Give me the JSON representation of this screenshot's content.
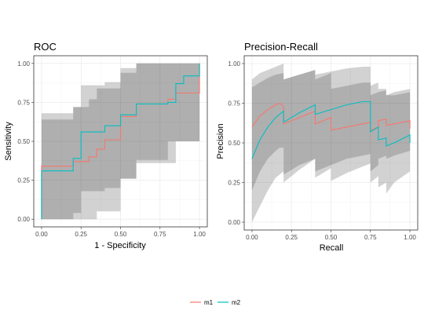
{
  "chart_data": [
    {
      "type": "line",
      "title": "ROC",
      "xlabel": "1 - Specificity",
      "ylabel": "Sensitivity",
      "xlim": [
        0,
        1
      ],
      "ylim": [
        0,
        1
      ],
      "x_ticks": [
        "0.00",
        "0.25",
        "0.50",
        "0.75",
        "1.00"
      ],
      "y_ticks": [
        "0.00",
        "0.25",
        "0.50",
        "0.75",
        "1.00"
      ],
      "grid": true,
      "series": [
        {
          "name": "m1",
          "color": "#f8766d",
          "x": [
            0,
            0,
            0.2,
            0.2,
            0.3,
            0.3,
            0.35,
            0.35,
            0.4,
            0.4,
            0.5,
            0.5,
            0.6,
            0.6,
            0.8,
            0.8,
            0.85,
            0.85,
            1.0,
            1.0
          ],
          "y": [
            0,
            0.34,
            0.34,
            0.37,
            0.37,
            0.4,
            0.4,
            0.45,
            0.45,
            0.51,
            0.51,
            0.66,
            0.66,
            0.74,
            0.74,
            0.77,
            0.77,
            0.81,
            0.81,
            1.0
          ],
          "band_lower": [
            0,
            0,
            0,
            0,
            0,
            0,
            0,
            0.05,
            0.05,
            0.05,
            0.05,
            0.26,
            0.26,
            0.38,
            0.38,
            0.5,
            0.5,
            0.5,
            0.5,
            0.5
          ],
          "band_upper": [
            0.68,
            0.68,
            0.68,
            0.72,
            0.72,
            0.77,
            0.77,
            0.84,
            0.84,
            0.84,
            0.84,
            0.97,
            0.97,
            1.0,
            1.0,
            1.0,
            1.0,
            1.0,
            1.0,
            1.0
          ]
        },
        {
          "name": "m2",
          "color": "#00bfc4",
          "x": [
            0,
            0,
            0.2,
            0.2,
            0.25,
            0.25,
            0.4,
            0.4,
            0.5,
            0.5,
            0.6,
            0.6,
            0.8,
            0.8,
            0.85,
            0.85,
            0.9,
            0.9,
            1.0,
            1.0
          ],
          "y": [
            0,
            0.31,
            0.31,
            0.39,
            0.39,
            0.56,
            0.56,
            0.6,
            0.6,
            0.67,
            0.67,
            0.74,
            0.74,
            0.75,
            0.75,
            0.87,
            0.87,
            0.92,
            0.92,
            1.0
          ],
          "band_lower": [
            0,
            0,
            0,
            0.04,
            0.04,
            0.18,
            0.18,
            0.2,
            0.2,
            0.26,
            0.26,
            0.36,
            0.36,
            0.36,
            0.36,
            0.5,
            0.5,
            0.5,
            0.5,
            0.5
          ],
          "band_upper": [
            0.64,
            0.64,
            0.64,
            0.72,
            0.72,
            0.86,
            0.86,
            0.88,
            0.88,
            0.94,
            0.94,
            1.0,
            1.0,
            1.0,
            1.0,
            1.0,
            1.0,
            1.0,
            1.0,
            1.0
          ]
        }
      ]
    },
    {
      "type": "line",
      "title": "Precision-Recall",
      "xlabel": "Recall",
      "ylabel": "Precision",
      "xlim": [
        0,
        1
      ],
      "ylim": [
        0,
        1
      ],
      "x_ticks": [
        "0.00",
        "0.25",
        "0.50",
        "0.75",
        "1.00"
      ],
      "y_ticks": [
        "0.00",
        "0.25",
        "0.50",
        "0.75",
        "1.00"
      ],
      "grid": true,
      "series": [
        {
          "name": "m1",
          "color": "#f8766d",
          "x": [
            0,
            0.05,
            0.1,
            0.15,
            0.175,
            0.2,
            0.2,
            0.3,
            0.4,
            0.4,
            0.45,
            0.5,
            0.5,
            0.6,
            0.7,
            0.75,
            0.75,
            0.8,
            0.8,
            0.85,
            0.85,
            0.9,
            1.0,
            1.0
          ],
          "y": [
            0.6,
            0.67,
            0.71,
            0.74,
            0.75,
            0.73,
            0.62,
            0.66,
            0.7,
            0.62,
            0.64,
            0.66,
            0.58,
            0.6,
            0.62,
            0.63,
            0.58,
            0.6,
            0.64,
            0.65,
            0.61,
            0.62,
            0.64,
            0.59
          ],
          "band_lower": [
            0.2,
            0.32,
            0.4,
            0.45,
            0.47,
            0.47,
            0.3,
            0.36,
            0.4,
            0.28,
            0.31,
            0.34,
            0.26,
            0.31,
            0.35,
            0.37,
            0.32,
            0.36,
            0.4,
            0.42,
            0.4,
            0.42,
            0.45,
            0.45
          ],
          "band_upper": [
            0.9,
            0.94,
            0.96,
            0.98,
            0.99,
            1.0,
            0.9,
            0.93,
            0.96,
            0.9,
            0.92,
            0.94,
            0.84,
            0.86,
            0.88,
            0.88,
            0.8,
            0.82,
            0.84,
            0.84,
            0.8,
            0.8,
            0.82,
            0.8
          ]
        },
        {
          "name": "m2",
          "color": "#00bfc4",
          "x": [
            0,
            0.05,
            0.1,
            0.15,
            0.2,
            0.2,
            0.3,
            0.4,
            0.4,
            0.5,
            0.6,
            0.7,
            0.75,
            0.75,
            0.8,
            0.8,
            0.85,
            0.85,
            0.9,
            1.0,
            1.0
          ],
          "y": [
            0.4,
            0.52,
            0.6,
            0.66,
            0.7,
            0.63,
            0.69,
            0.74,
            0.68,
            0.71,
            0.74,
            0.76,
            0.76,
            0.57,
            0.6,
            0.52,
            0.53,
            0.48,
            0.5,
            0.55,
            0.5
          ],
          "band_lower": [
            0.0,
            0.1,
            0.2,
            0.28,
            0.32,
            0.25,
            0.33,
            0.4,
            0.32,
            0.36,
            0.4,
            0.42,
            0.43,
            0.25,
            0.29,
            0.22,
            0.25,
            0.18,
            0.25,
            0.32,
            0.28
          ],
          "band_upper": [
            0.85,
            0.88,
            0.91,
            0.93,
            0.94,
            0.9,
            0.93,
            0.96,
            0.93,
            0.95,
            0.97,
            0.98,
            0.98,
            0.86,
            0.88,
            0.82,
            0.83,
            0.8,
            0.82,
            0.84,
            0.8
          ]
        }
      ]
    }
  ],
  "legend": {
    "position": "bottom",
    "items": [
      {
        "label": "m1",
        "color": "#f8766d"
      },
      {
        "label": "m2",
        "color": "#00bfc4"
      }
    ]
  }
}
